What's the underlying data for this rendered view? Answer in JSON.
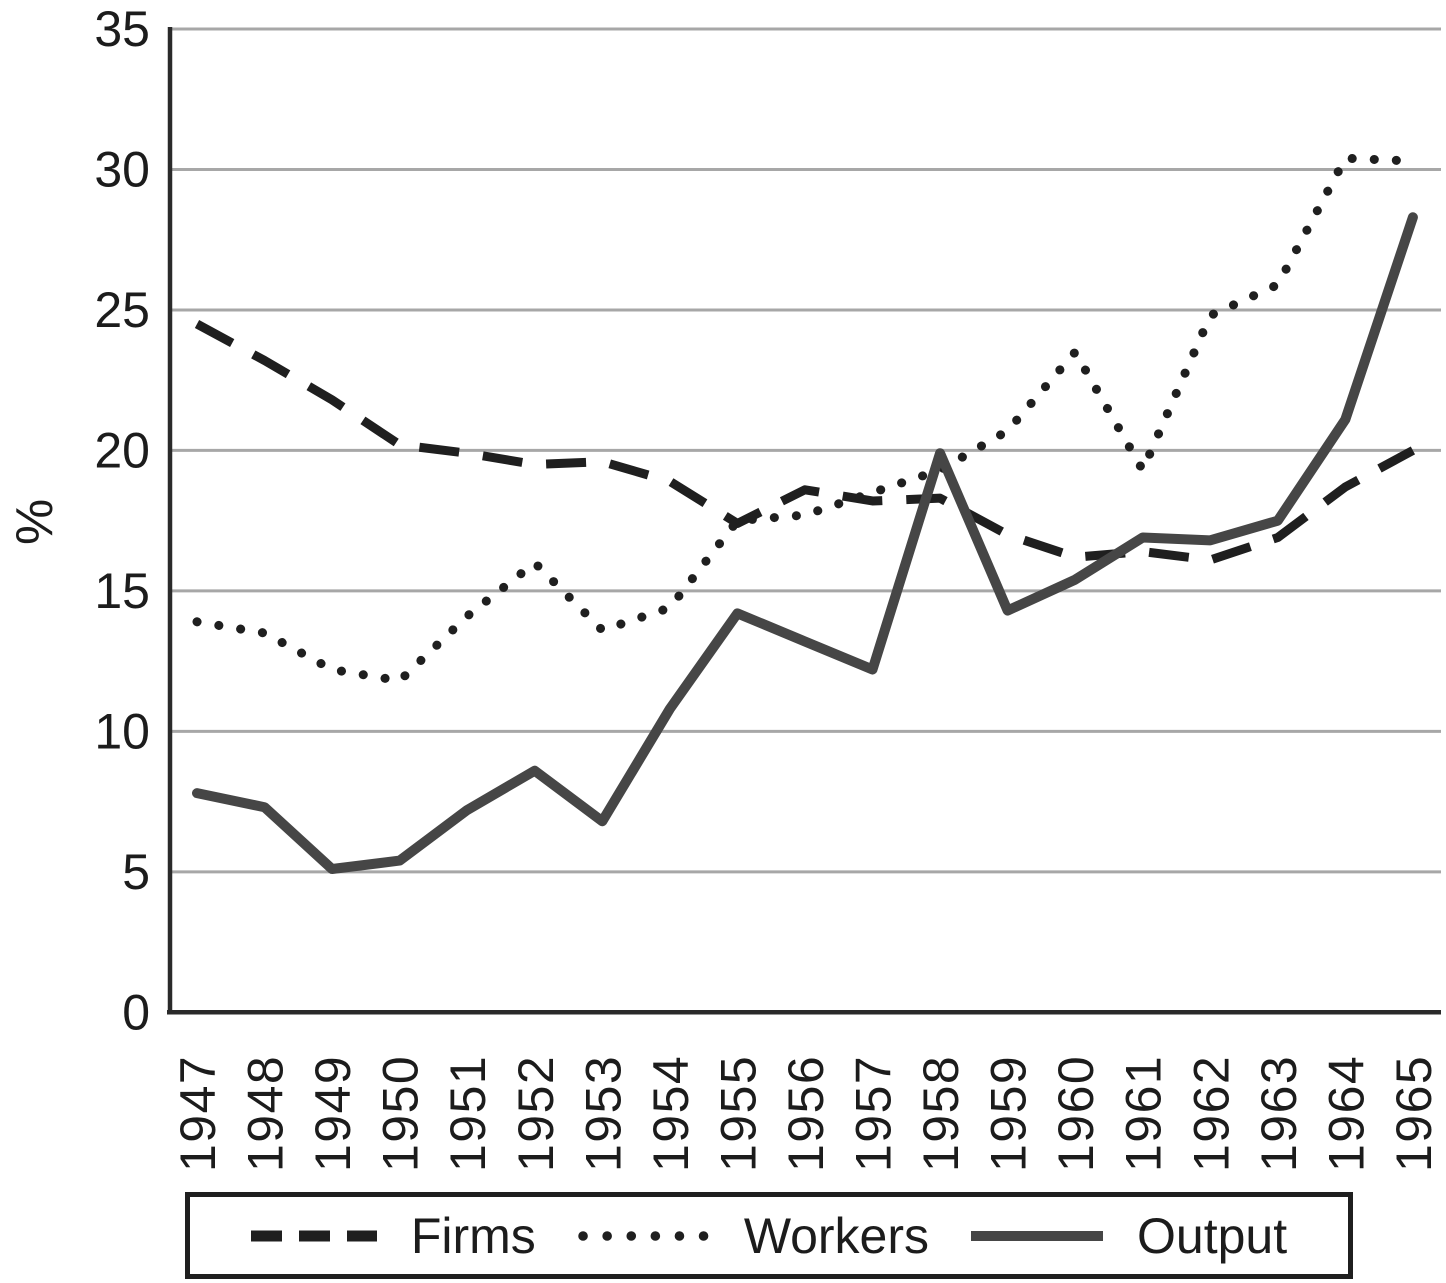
{
  "chart_data": {
    "type": "line",
    "title": "",
    "xlabel": "",
    "ylabel": "%",
    "x": [
      "1947",
      "1948",
      "1949",
      "1950",
      "1951",
      "1952",
      "1953",
      "1954",
      "1955",
      "1956",
      "1957",
      "1958",
      "1959",
      "1960",
      "1961",
      "1962",
      "1963",
      "1964",
      "1965"
    ],
    "series": [
      {
        "name": "Firms",
        "style": "dashed",
        "color": "#1f1f1f",
        "values": [
          24.5,
          23.2,
          21.8,
          20.2,
          19.9,
          19.5,
          19.6,
          18.9,
          17.4,
          18.6,
          18.2,
          18.3,
          17.0,
          16.2,
          16.4,
          16.1,
          16.9,
          18.7,
          20.0
        ]
      },
      {
        "name": "Workers",
        "style": "dotted",
        "color": "#1f1f1f",
        "values": [
          13.9,
          13.5,
          12.2,
          11.8,
          14.1,
          16.0,
          13.6,
          14.4,
          17.5,
          17.7,
          18.5,
          19.3,
          20.7,
          23.5,
          19.3,
          24.8,
          25.9,
          30.4,
          30.3
        ]
      },
      {
        "name": "Output",
        "style": "solid",
        "color": "#464646",
        "values": [
          7.8,
          7.3,
          5.1,
          5.4,
          7.2,
          8.6,
          6.8,
          10.8,
          14.2,
          13.2,
          12.2,
          19.9,
          14.3,
          15.4,
          16.9,
          16.8,
          17.5,
          21.1,
          28.3
        ]
      }
    ],
    "ylim": [
      0,
      35
    ],
    "yticks": [
      0,
      5,
      10,
      15,
      20,
      25,
      30,
      35
    ],
    "grid": true,
    "grid_color": "#a7a7a7",
    "axis_color": "#2a2a2a",
    "text_color": "#1c1c1c",
    "legend_position": "bottom"
  }
}
